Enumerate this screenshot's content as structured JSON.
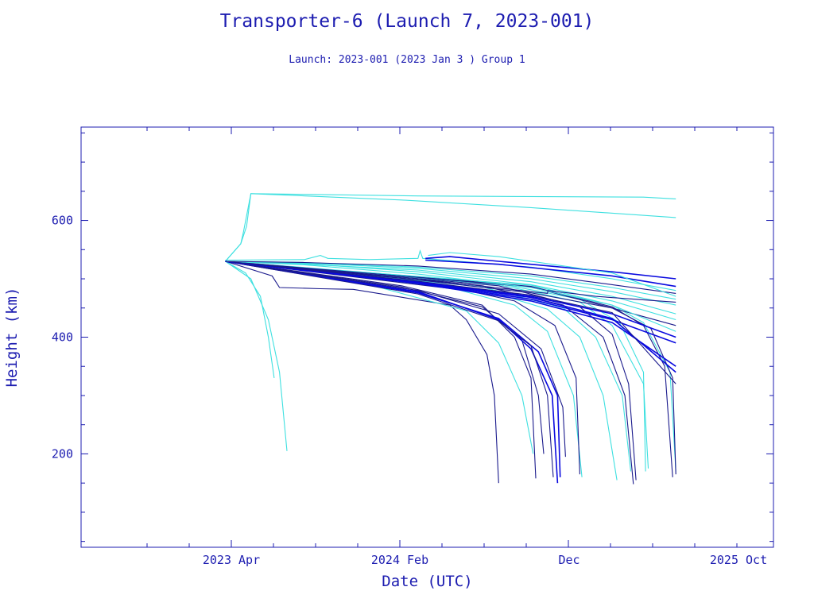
{
  "colors": {
    "frame": "#1c1cb0",
    "dark": "#1a1a8c",
    "bright": "#0a0adf",
    "cyan": "#3ee0e0"
  },
  "chart_data": {
    "type": "line",
    "title": "Transporter-6 (Launch 7, 2023-001)",
    "subtitle": "Launch: 2023-001  (2023 Jan  3 )  Group 1",
    "xlabel": "Date (UTC)",
    "ylabel": "Height (km)",
    "x_tick_labels": [
      "2023 Apr",
      "2024 Feb",
      "Dec",
      "2025 Oct"
    ],
    "y_ticks": [
      200,
      400,
      600
    ],
    "xlim": [
      "2022-04-06",
      "2025-11-01"
    ],
    "ylim": [
      40,
      760
    ],
    "grid": false,
    "legend": "none",
    "series": [
      {
        "color": "cyan",
        "points": [
          [
            "2023-01-03",
            530
          ],
          [
            "2023-02-01",
            560
          ],
          [
            "2023-02-06",
            580
          ],
          [
            "2023-02-20",
            646
          ],
          [
            "2024-01-01",
            642
          ],
          [
            "2025-03-01",
            640
          ],
          [
            "2025-05-01",
            637
          ]
        ]
      },
      {
        "color": "cyan",
        "points": [
          [
            "2023-01-03",
            530
          ],
          [
            "2023-02-01",
            560
          ],
          [
            "2023-02-12",
            590
          ],
          [
            "2023-02-20",
            646
          ],
          [
            "2023-12-01",
            635
          ],
          [
            "2024-08-01",
            622
          ],
          [
            "2025-05-01",
            605
          ]
        ]
      },
      {
        "color": "cyan",
        "points": [
          [
            "2023-01-03",
            530
          ],
          [
            "2023-02-10",
            510
          ],
          [
            "2023-03-10",
            470
          ],
          [
            "2023-03-25",
            400
          ],
          [
            "2023-04-05",
            330
          ]
        ]
      },
      {
        "color": "cyan",
        "points": [
          [
            "2023-01-03",
            530
          ],
          [
            "2023-02-20",
            500
          ],
          [
            "2023-03-25",
            430
          ],
          [
            "2023-04-15",
            340
          ],
          [
            "2023-04-29",
            205
          ]
        ]
      },
      {
        "color": "dark",
        "points": [
          [
            "2023-01-03",
            530
          ],
          [
            "2023-04-01",
            505
          ],
          [
            "2023-04-15",
            485
          ],
          [
            "2023-07-01",
            483
          ],
          [
            "2023-09-01",
            482
          ],
          [
            "2024-03-01",
            455
          ],
          [
            "2024-04-01",
            430
          ],
          [
            "2024-05-10",
            370
          ],
          [
            "2024-05-24",
            300
          ],
          [
            "2024-06-01",
            150
          ]
        ]
      },
      {
        "color": "cyan",
        "points": [
          [
            "2023-01-03",
            530
          ],
          [
            "2023-10-01",
            490
          ],
          [
            "2024-04-01",
            445
          ],
          [
            "2024-06-01",
            390
          ],
          [
            "2024-07-15",
            300
          ],
          [
            "2024-08-05",
            200
          ]
        ]
      },
      {
        "color": "dark",
        "points": [
          [
            "2023-01-03",
            530
          ],
          [
            "2023-12-01",
            488
          ],
          [
            "2024-05-01",
            455
          ],
          [
            "2024-07-01",
            400
          ],
          [
            "2024-08-01",
            330
          ],
          [
            "2024-08-10",
            158
          ]
        ]
      },
      {
        "color": "dark",
        "points": [
          [
            "2023-01-03",
            530
          ],
          [
            "2023-12-01",
            486
          ],
          [
            "2024-05-01",
            452
          ],
          [
            "2024-07-15",
            395
          ],
          [
            "2024-08-15",
            300
          ],
          [
            "2024-08-25",
            200
          ]
        ]
      },
      {
        "color": "bright",
        "points": [
          [
            "2023-01-03",
            530
          ],
          [
            "2024-01-01",
            478
          ],
          [
            "2024-06-01",
            430
          ],
          [
            "2024-08-01",
            380
          ],
          [
            "2024-09-10",
            300
          ],
          [
            "2024-09-20",
            150
          ]
        ]
      },
      {
        "color": "bright",
        "points": [
          [
            "2023-01-03",
            530
          ],
          [
            "2024-01-01",
            476
          ],
          [
            "2024-06-01",
            432
          ],
          [
            "2024-08-15",
            375
          ],
          [
            "2024-09-20",
            300
          ],
          [
            "2024-09-25",
            160
          ]
        ]
      },
      {
        "color": "dark",
        "points": [
          [
            "2023-01-03",
            530
          ],
          [
            "2024-01-01",
            474
          ],
          [
            "2024-06-01",
            428
          ],
          [
            "2024-08-01",
            385
          ],
          [
            "2024-09-01",
            300
          ],
          [
            "2024-09-12",
            160
          ]
        ]
      },
      {
        "color": "dark",
        "points": [
          [
            "2023-01-03",
            530
          ],
          [
            "2024-01-01",
            480
          ],
          [
            "2024-06-01",
            440
          ],
          [
            "2024-08-20",
            380
          ],
          [
            "2024-09-30",
            280
          ],
          [
            "2024-10-05",
            195
          ]
        ]
      },
      {
        "color": "cyan",
        "points": [
          [
            "2023-01-03",
            530
          ],
          [
            "2024-03-01",
            485
          ],
          [
            "2024-07-01",
            455
          ],
          [
            "2024-09-01",
            410
          ],
          [
            "2024-10-20",
            300
          ],
          [
            "2024-11-05",
            160
          ]
        ]
      },
      {
        "color": "dark",
        "points": [
          [
            "2023-01-03",
            530
          ],
          [
            "2024-04-01",
            480
          ],
          [
            "2024-07-01",
            462
          ],
          [
            "2024-09-15",
            420
          ],
          [
            "2024-10-25",
            330
          ],
          [
            "2024-11-01",
            165
          ]
        ]
      },
      {
        "color": "cyan",
        "points": [
          [
            "2023-01-03",
            530
          ],
          [
            "2024-05-01",
            482
          ],
          [
            "2024-09-01",
            448
          ],
          [
            "2024-11-01",
            400
          ],
          [
            "2024-12-15",
            300
          ],
          [
            "2025-01-10",
            155
          ]
        ]
      },
      {
        "color": "cyan",
        "points": [
          [
            "2023-01-03",
            530
          ],
          [
            "2024-05-01",
            486
          ],
          [
            "2024-10-01",
            450
          ],
          [
            "2024-12-01",
            400
          ],
          [
            "2025-01-20",
            300
          ],
          [
            "2025-02-05",
            170
          ]
        ]
      },
      {
        "color": "dark",
        "points": [
          [
            "2023-01-03",
            530
          ],
          [
            "2024-05-01",
            488
          ],
          [
            "2024-10-01",
            455
          ],
          [
            "2024-12-15",
            400
          ],
          [
            "2025-01-25",
            300
          ],
          [
            "2025-02-10",
            148
          ]
        ]
      },
      {
        "color": "dark",
        "points": [
          [
            "2023-01-03",
            530
          ],
          [
            "2024-06-01",
            488
          ],
          [
            "2024-11-01",
            452
          ],
          [
            "2025-01-01",
            405
          ],
          [
            "2025-02-01",
            320
          ],
          [
            "2025-02-15",
            155
          ]
        ]
      },
      {
        "color": "cyan",
        "points": [
          [
            "2023-01-03",
            530
          ],
          [
            "2024-06-01",
            490
          ],
          [
            "2024-11-01",
            460
          ],
          [
            "2025-01-01",
            420
          ],
          [
            "2025-03-01",
            320
          ],
          [
            "2025-03-10",
            175
          ]
        ]
      },
      {
        "color": "cyan",
        "points": [
          [
            "2023-01-03",
            530
          ],
          [
            "2024-06-01",
            492
          ],
          [
            "2024-11-01",
            465
          ],
          [
            "2025-01-15",
            425
          ],
          [
            "2025-03-01",
            340
          ],
          [
            "2025-03-05",
            170
          ]
        ]
      },
      {
        "color": "dark",
        "points": [
          [
            "2023-01-03",
            530
          ],
          [
            "2024-08-01",
            487
          ],
          [
            "2025-01-01",
            452
          ],
          [
            "2025-03-01",
            420
          ],
          [
            "2025-04-10",
            350
          ],
          [
            "2025-04-25",
            160
          ]
        ]
      },
      {
        "color": "cyan",
        "points": [
          [
            "2023-01-03",
            530
          ],
          [
            "2024-08-01",
            489
          ],
          [
            "2025-01-01",
            455
          ],
          [
            "2025-03-01",
            425
          ],
          [
            "2025-04-20",
            340
          ],
          [
            "2025-05-01",
            170
          ]
        ]
      },
      {
        "color": "dark",
        "points": [
          [
            "2023-01-03",
            530
          ],
          [
            "2024-08-01",
            486
          ],
          [
            "2025-01-01",
            450
          ],
          [
            "2025-03-15",
            415
          ],
          [
            "2025-04-25",
            330
          ],
          [
            "2025-05-01",
            165
          ]
        ]
      },
      {
        "color": "bright",
        "points": [
          [
            "2023-01-03",
            530
          ],
          [
            "2024-01-01",
            495
          ],
          [
            "2024-08-01",
            470
          ],
          [
            "2025-01-01",
            440
          ],
          [
            "2025-05-01",
            400
          ]
        ]
      },
      {
        "color": "bright",
        "points": [
          [
            "2023-01-03",
            530
          ],
          [
            "2024-01-01",
            493
          ],
          [
            "2024-08-01",
            465
          ],
          [
            "2025-01-01",
            430
          ],
          [
            "2025-05-01",
            390
          ]
        ]
      },
      {
        "color": "bright",
        "points": [
          [
            "2023-01-03",
            530
          ],
          [
            "2024-01-01",
            492
          ],
          [
            "2024-08-01",
            462
          ],
          [
            "2025-01-01",
            425
          ],
          [
            "2025-05-01",
            350
          ]
        ]
      },
      {
        "color": "bright",
        "points": [
          [
            "2023-01-03",
            530
          ],
          [
            "2024-01-01",
            494
          ],
          [
            "2024-08-01",
            468
          ],
          [
            "2025-01-01",
            432
          ],
          [
            "2025-05-01",
            340
          ]
        ]
      },
      {
        "color": "dark",
        "points": [
          [
            "2023-01-03",
            530
          ],
          [
            "2024-01-01",
            496
          ],
          [
            "2024-08-01",
            472
          ],
          [
            "2025-01-01",
            442
          ],
          [
            "2025-05-01",
            320
          ]
        ]
      },
      {
        "color": "dark",
        "points": [
          [
            "2023-01-03",
            530
          ],
          [
            "2024-01-01",
            498
          ],
          [
            "2024-08-01",
            476
          ],
          [
            "2025-01-01",
            450
          ],
          [
            "2025-05-01",
            420
          ]
        ]
      },
      {
        "color": "cyan",
        "points": [
          [
            "2023-01-03",
            530
          ],
          [
            "2023-06-01",
            525
          ],
          [
            "2024-01-01",
            515
          ],
          [
            "2024-08-01",
            495
          ],
          [
            "2025-01-01",
            470
          ],
          [
            "2025-05-01",
            440
          ]
        ]
      },
      {
        "color": "cyan",
        "points": [
          [
            "2023-01-03",
            530
          ],
          [
            "2023-06-01",
            527
          ],
          [
            "2024-01-01",
            518
          ],
          [
            "2024-08-01",
            500
          ],
          [
            "2025-01-01",
            478
          ],
          [
            "2025-05-01",
            455
          ]
        ]
      },
      {
        "color": "cyan",
        "points": [
          [
            "2023-01-03",
            530
          ],
          [
            "2023-06-01",
            528
          ],
          [
            "2024-01-01",
            520
          ],
          [
            "2024-08-01",
            505
          ],
          [
            "2025-01-01",
            485
          ],
          [
            "2025-05-01",
            465
          ]
        ]
      },
      {
        "color": "cyan",
        "points": [
          [
            "2023-01-03",
            530
          ],
          [
            "2023-06-01",
            526
          ],
          [
            "2024-01-01",
            512
          ],
          [
            "2024-08-01",
            490
          ],
          [
            "2025-01-01",
            462
          ],
          [
            "2025-05-01",
            430
          ]
        ]
      },
      {
        "color": "cyan",
        "points": [
          [
            "2023-01-03",
            530
          ],
          [
            "2023-06-01",
            524
          ],
          [
            "2024-01-01",
            508
          ],
          [
            "2024-08-01",
            485
          ],
          [
            "2025-01-01",
            455
          ],
          [
            "2025-05-01",
            410
          ]
        ]
      },
      {
        "color": "cyan",
        "points": [
          [
            "2023-01-03",
            532
          ],
          [
            "2023-06-01",
            533
          ],
          [
            "2023-07-01",
            540
          ],
          [
            "2023-07-15",
            535
          ],
          [
            "2023-10-01",
            533
          ],
          [
            "2024-01-01",
            535
          ],
          [
            "2024-01-05",
            548
          ],
          [
            "2024-01-10",
            535
          ],
          [
            "2024-08-01",
            520
          ],
          [
            "2025-01-01",
            500
          ],
          [
            "2025-05-01",
            480
          ]
        ]
      },
      {
        "color": "dark",
        "points": [
          [
            "2023-01-03",
            530
          ],
          [
            "2023-06-01",
            528
          ],
          [
            "2024-01-01",
            522
          ],
          [
            "2024-08-01",
            508
          ],
          [
            "2025-01-01",
            490
          ],
          [
            "2025-05-01",
            475
          ]
        ]
      },
      {
        "color": "bright",
        "points": [
          [
            "2024-01-15",
            535
          ],
          [
            "2024-03-01",
            538
          ],
          [
            "2024-06-01",
            530
          ],
          [
            "2025-01-01",
            512
          ],
          [
            "2025-05-01",
            500
          ]
        ]
      },
      {
        "color": "bright",
        "points": [
          [
            "2024-01-15",
            532
          ],
          [
            "2024-06-01",
            525
          ],
          [
            "2025-01-01",
            505
          ],
          [
            "2025-05-01",
            487
          ]
        ]
      },
      {
        "color": "cyan",
        "points": [
          [
            "2024-01-20",
            540
          ],
          [
            "2024-03-01",
            545
          ],
          [
            "2024-06-01",
            538
          ],
          [
            "2025-01-01",
            510
          ],
          [
            "2025-05-01",
            470
          ]
        ]
      },
      {
        "color": "dark",
        "points": [
          [
            "2023-01-03",
            530
          ],
          [
            "2024-01-01",
            500
          ],
          [
            "2024-08-01",
            478
          ],
          [
            "2024-09-01",
            475
          ],
          [
            "2024-09-02",
            480
          ],
          [
            "2024-12-01",
            470
          ],
          [
            "2025-05-01",
            460
          ]
        ]
      }
    ]
  }
}
